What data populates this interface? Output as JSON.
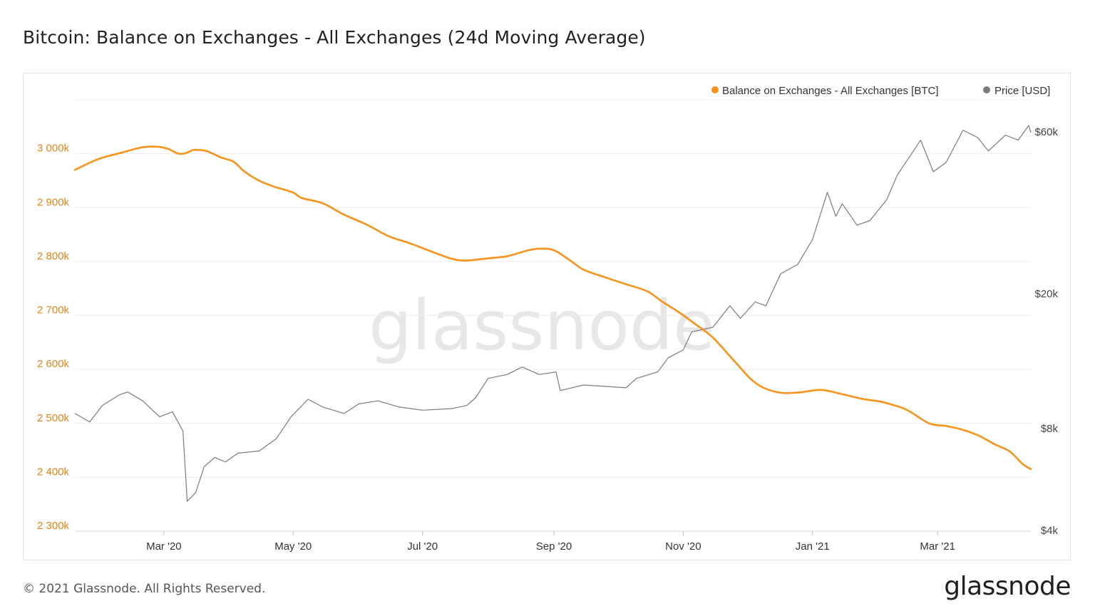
{
  "title": "Bitcoin: Balance on Exchanges - All Exchanges (24d Moving Average)",
  "footer": "© 2021 Glassnode. All Rights Reserved.",
  "logo": "glassnode",
  "watermark": "glassnode",
  "colors": {
    "balance": "#f7931a",
    "price": "#7b7b7b",
    "grid": "#ececec",
    "left_axis_text": "#e0861a",
    "right_axis_text": "#444444"
  },
  "chart_data": {
    "type": "line",
    "title": "Bitcoin: Balance on Exchanges - All Exchanges (24d Moving Average)",
    "x_ticks": [
      "Mar '20",
      "May '20",
      "Jul '20",
      "Sep '20",
      "Nov '20",
      "Jan '21",
      "Mar '21"
    ],
    "x_tick_dates": [
      "2020-03-01",
      "2020-05-01",
      "2020-07-01",
      "2020-09-01",
      "2020-11-01",
      "2021-01-01",
      "2021-03-01"
    ],
    "x_range": [
      "2020-01-19",
      "2021-04-14"
    ],
    "y_left": {
      "unit": "k BTC",
      "range": [
        2300,
        3100
      ],
      "ticks": [
        2300,
        2400,
        2500,
        2600,
        2700,
        2800,
        2900,
        3000
      ],
      "tick_labels": [
        "2 300k",
        "2 400k",
        "2 500k",
        "2 600k",
        "2 700k",
        "2 800k",
        "2 900k",
        "3 000k"
      ]
    },
    "y_right": {
      "scale": "log",
      "range": [
        4000,
        75000
      ],
      "ticks": [
        4000,
        8000,
        20000,
        60000
      ],
      "tick_labels": [
        "$4k",
        "$8k",
        "$20k",
        "$60k"
      ]
    },
    "legend_position": "top-right",
    "series": [
      {
        "name": "Balance on Exchanges - All Exchanges [BTC]",
        "axis": "left",
        "points": [
          [
            "2020-01-19",
            2970
          ],
          [
            "2020-01-30",
            2990
          ],
          [
            "2020-02-10",
            3002
          ],
          [
            "2020-02-20",
            3012
          ],
          [
            "2020-02-27",
            3013
          ],
          [
            "2020-03-03",
            3009
          ],
          [
            "2020-03-08",
            3000
          ],
          [
            "2020-03-12",
            3002
          ],
          [
            "2020-03-15",
            3007
          ],
          [
            "2020-03-21",
            3005
          ],
          [
            "2020-03-28",
            2993
          ],
          [
            "2020-04-03",
            2985
          ],
          [
            "2020-04-08",
            2967
          ],
          [
            "2020-04-15",
            2950
          ],
          [
            "2020-04-22",
            2939
          ],
          [
            "2020-05-01",
            2928
          ],
          [
            "2020-05-05",
            2918
          ],
          [
            "2020-05-15",
            2908
          ],
          [
            "2020-05-25",
            2887
          ],
          [
            "2020-06-05",
            2868
          ],
          [
            "2020-06-15",
            2847
          ],
          [
            "2020-06-25",
            2834
          ],
          [
            "2020-07-05",
            2819
          ],
          [
            "2020-07-15",
            2805
          ],
          [
            "2020-07-22",
            2802
          ],
          [
            "2020-08-01",
            2806
          ],
          [
            "2020-08-10",
            2810
          ],
          [
            "2020-08-20",
            2821
          ],
          [
            "2020-08-26",
            2824
          ],
          [
            "2020-09-01",
            2821
          ],
          [
            "2020-09-08",
            2804
          ],
          [
            "2020-09-15",
            2785
          ],
          [
            "2020-09-25",
            2771
          ],
          [
            "2020-10-05",
            2758
          ],
          [
            "2020-10-15",
            2745
          ],
          [
            "2020-10-22",
            2726
          ],
          [
            "2020-10-30",
            2706
          ],
          [
            "2020-11-06",
            2686
          ],
          [
            "2020-11-15",
            2659
          ],
          [
            "2020-11-25",
            2616
          ],
          [
            "2020-12-05",
            2575
          ],
          [
            "2020-12-15",
            2558
          ],
          [
            "2020-12-25",
            2557
          ],
          [
            "2021-01-05",
            2562
          ],
          [
            "2021-01-15",
            2554
          ],
          [
            "2021-01-25",
            2545
          ],
          [
            "2021-02-01",
            2541
          ],
          [
            "2021-02-08",
            2534
          ],
          [
            "2021-02-15",
            2524
          ],
          [
            "2021-02-25",
            2500
          ],
          [
            "2021-03-05",
            2495
          ],
          [
            "2021-03-12",
            2489
          ],
          [
            "2021-03-20",
            2478
          ],
          [
            "2021-03-28",
            2461
          ],
          [
            "2021-04-04",
            2448
          ],
          [
            "2021-04-10",
            2425
          ],
          [
            "2021-04-14",
            2415
          ]
        ]
      },
      {
        "name": "Price [USD]",
        "axis": "right",
        "points": [
          [
            "2020-01-19",
            8900
          ],
          [
            "2020-01-26",
            8400
          ],
          [
            "2020-02-01",
            9400
          ],
          [
            "2020-02-09",
            10100
          ],
          [
            "2020-02-13",
            10300
          ],
          [
            "2020-02-20",
            9700
          ],
          [
            "2020-02-28",
            8700
          ],
          [
            "2020-03-05",
            9000
          ],
          [
            "2020-03-10",
            7900
          ],
          [
            "2020-03-12",
            4900
          ],
          [
            "2020-03-16",
            5200
          ],
          [
            "2020-03-20",
            6200
          ],
          [
            "2020-03-25",
            6600
          ],
          [
            "2020-03-30",
            6400
          ],
          [
            "2020-04-05",
            6800
          ],
          [
            "2020-04-15",
            6900
          ],
          [
            "2020-04-23",
            7500
          ],
          [
            "2020-04-30",
            8700
          ],
          [
            "2020-05-08",
            9800
          ],
          [
            "2020-05-15",
            9300
          ],
          [
            "2020-05-25",
            8900
          ],
          [
            "2020-06-01",
            9500
          ],
          [
            "2020-06-10",
            9700
          ],
          [
            "2020-06-20",
            9300
          ],
          [
            "2020-07-01",
            9100
          ],
          [
            "2020-07-15",
            9200
          ],
          [
            "2020-07-22",
            9400
          ],
          [
            "2020-07-26",
            9900
          ],
          [
            "2020-08-01",
            11300
          ],
          [
            "2020-08-10",
            11600
          ],
          [
            "2020-08-17",
            12200
          ],
          [
            "2020-08-25",
            11600
          ],
          [
            "2020-09-02",
            11800
          ],
          [
            "2020-09-04",
            10400
          ],
          [
            "2020-09-15",
            10800
          ],
          [
            "2020-09-25",
            10700
          ],
          [
            "2020-10-05",
            10600
          ],
          [
            "2020-10-10",
            11300
          ],
          [
            "2020-10-20",
            11800
          ],
          [
            "2020-10-25",
            13000
          ],
          [
            "2020-11-01",
            13700
          ],
          [
            "2020-11-05",
            15500
          ],
          [
            "2020-11-15",
            16000
          ],
          [
            "2020-11-23",
            18500
          ],
          [
            "2020-11-28",
            17000
          ],
          [
            "2020-12-05",
            19000
          ],
          [
            "2020-12-10",
            18500
          ],
          [
            "2020-12-17",
            23000
          ],
          [
            "2020-12-25",
            24500
          ],
          [
            "2021-01-01",
            29000
          ],
          [
            "2021-01-08",
            40000
          ],
          [
            "2021-01-12",
            34000
          ],
          [
            "2021-01-15",
            37000
          ],
          [
            "2021-01-22",
            32000
          ],
          [
            "2021-01-28",
            33000
          ],
          [
            "2021-02-05",
            38000
          ],
          [
            "2021-02-10",
            45000
          ],
          [
            "2021-02-21",
            57000
          ],
          [
            "2021-02-27",
            46000
          ],
          [
            "2021-03-05",
            49000
          ],
          [
            "2021-03-13",
            61000
          ],
          [
            "2021-03-20",
            58000
          ],
          [
            "2021-03-25",
            53000
          ],
          [
            "2021-04-02",
            59000
          ],
          [
            "2021-04-08",
            57000
          ],
          [
            "2021-04-13",
            63000
          ],
          [
            "2021-04-14",
            60000
          ]
        ]
      }
    ]
  }
}
